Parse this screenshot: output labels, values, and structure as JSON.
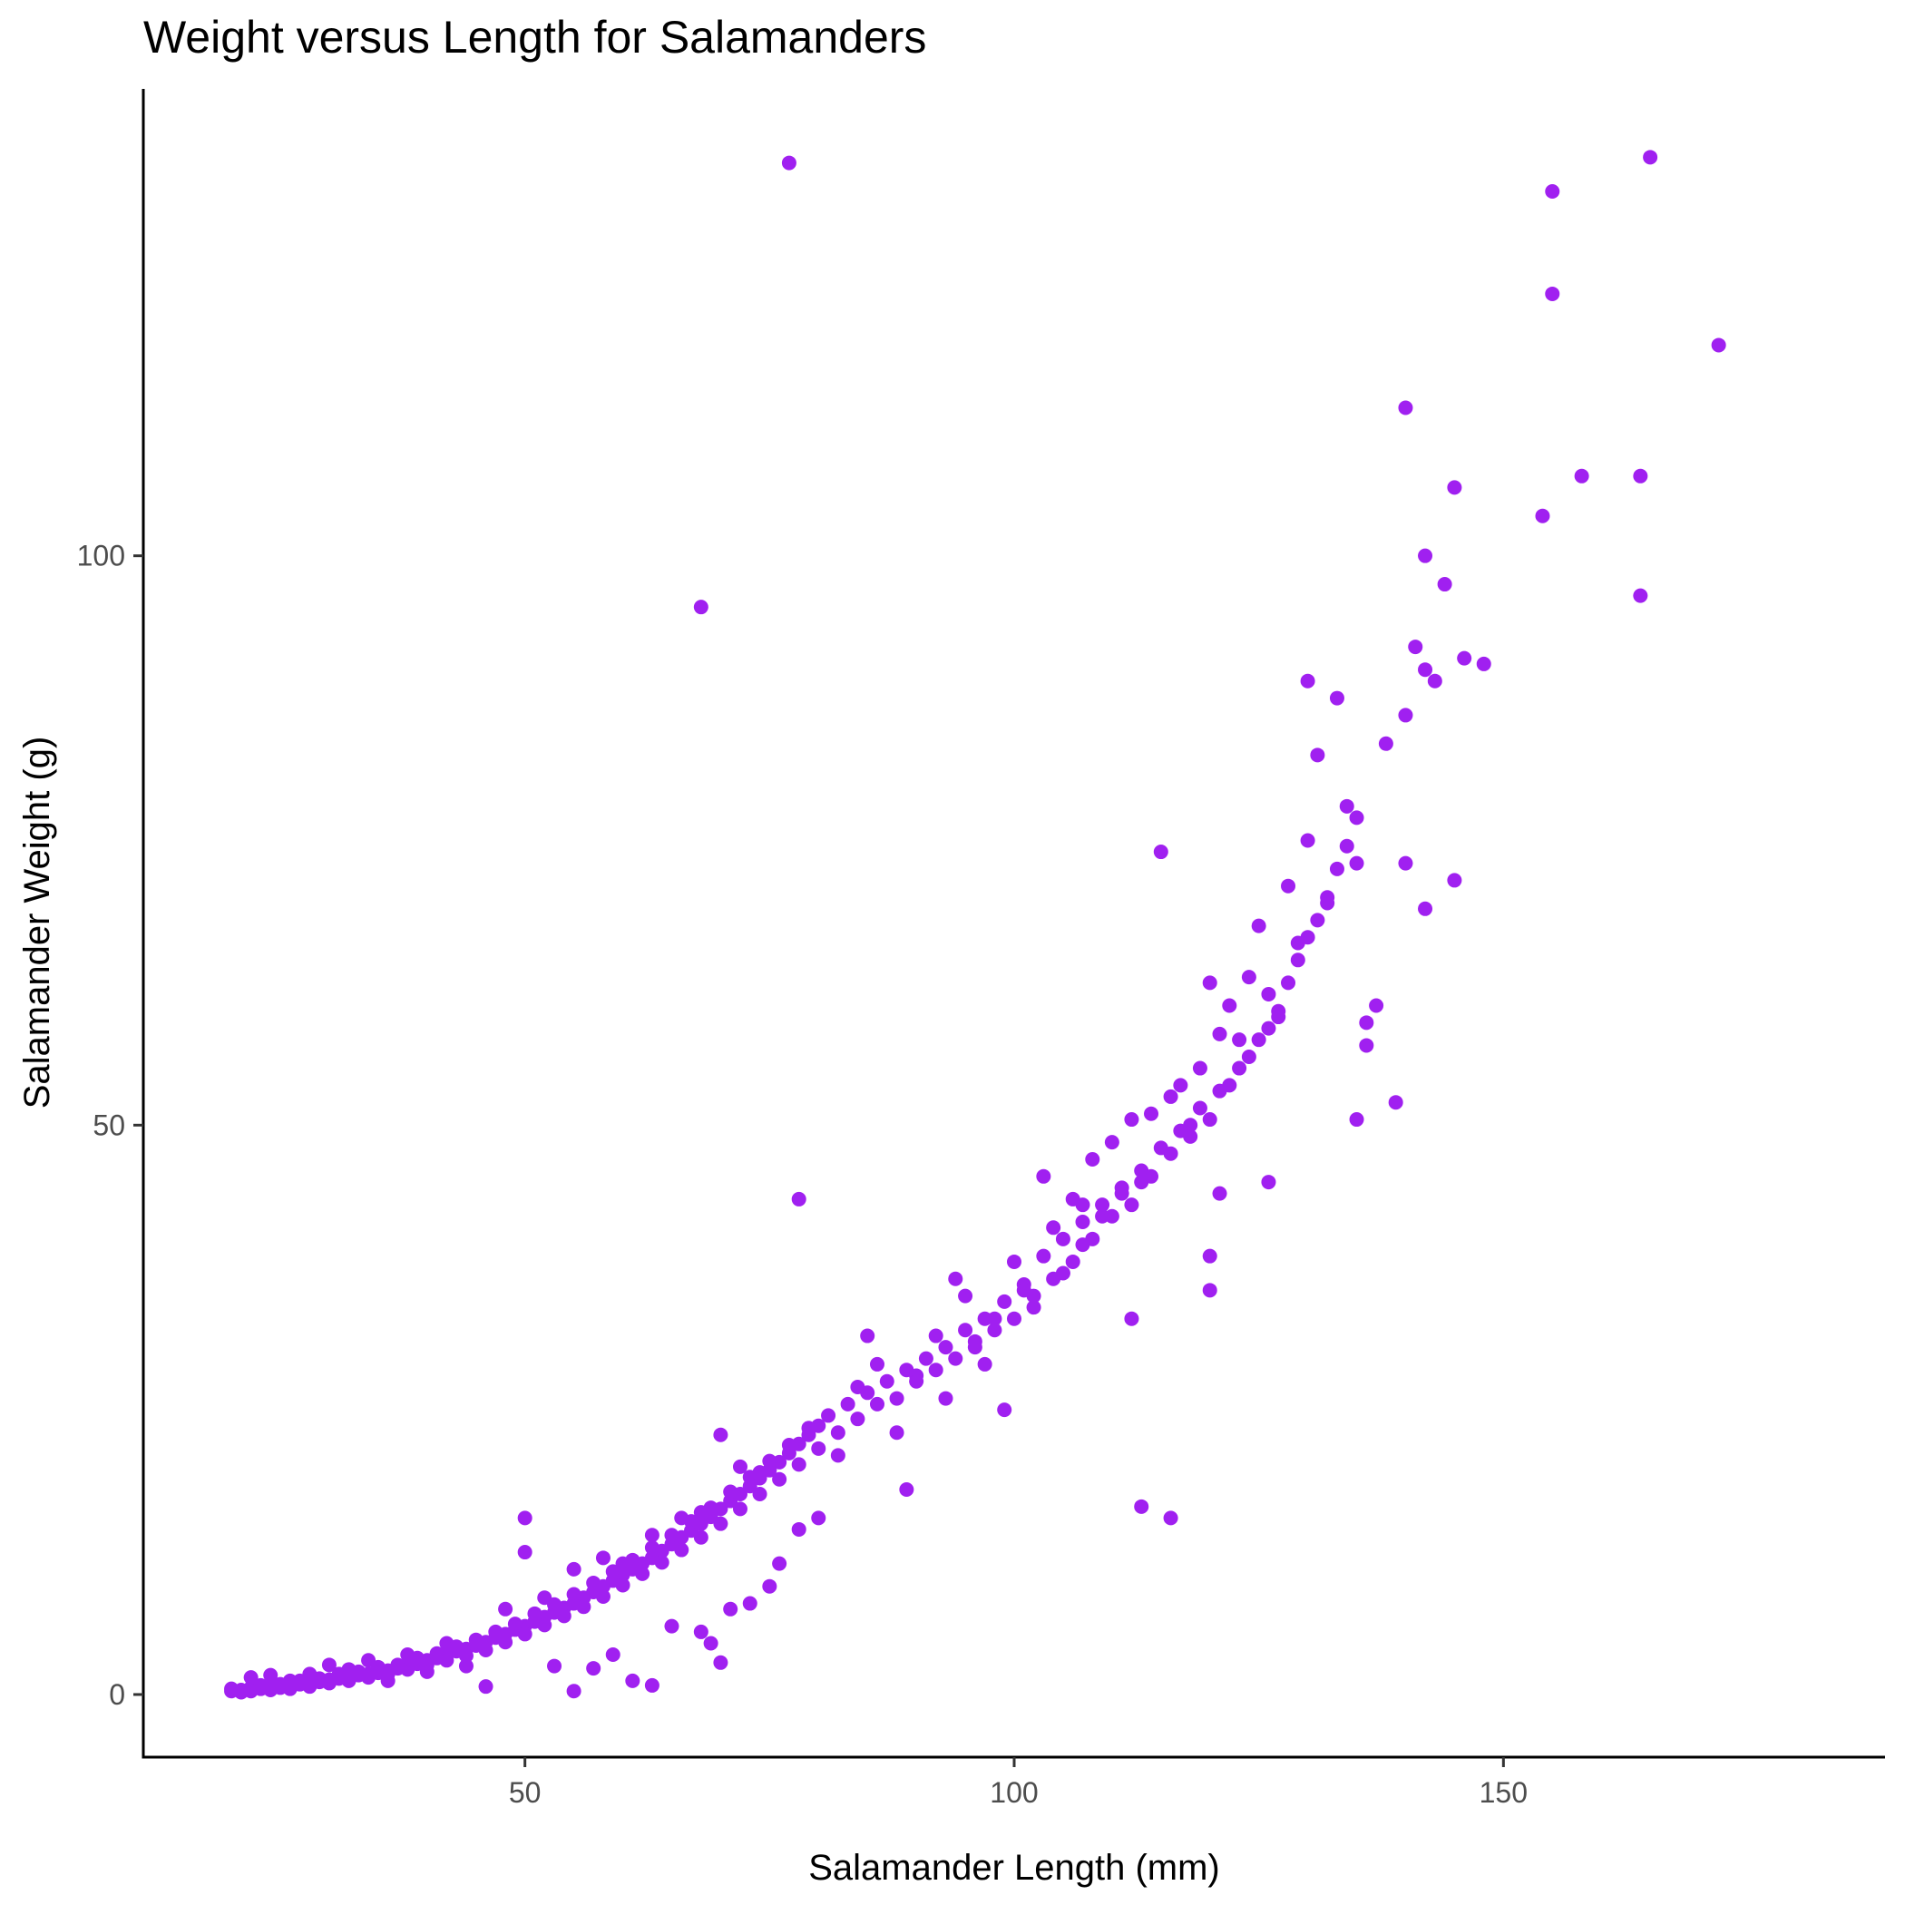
{
  "chart_data": {
    "type": "scatter",
    "title": "Weight versus Length for Salamanders",
    "xlabel": "Salamander Length (mm)",
    "ylabel": "Salamander Weight (g)",
    "xlim": [
      11,
      189
    ],
    "ylim": [
      -5.5,
      141
    ],
    "x_ticks": [
      50,
      100,
      150
    ],
    "y_ticks": [
      0,
      50,
      100
    ],
    "x_tick_labels": [
      "50",
      "100",
      "150"
    ],
    "y_tick_labels": [
      "0",
      "50",
      "100"
    ],
    "grid": false,
    "legend": "none",
    "point_color": "#A020F0",
    "series": [
      {
        "points": [
          [
            20,
            0.5
          ],
          [
            21,
            0.4
          ],
          [
            22,
            0.6
          ],
          [
            23,
            0.5
          ],
          [
            24,
            0.7
          ],
          [
            25,
            0.6
          ],
          [
            26,
            0.8
          ],
          [
            27,
            0.9
          ],
          [
            28,
            1.0
          ],
          [
            29,
            1.1
          ],
          [
            30,
            1.3
          ],
          [
            31,
            1.4
          ],
          [
            32,
            1.5
          ],
          [
            33,
            1.7
          ],
          [
            34,
            1.8
          ],
          [
            35,
            1.9
          ],
          [
            36,
            2.1
          ],
          [
            37,
            2.3
          ],
          [
            38,
            2.5
          ],
          [
            39,
            2.7
          ],
          [
            40,
            3.0
          ],
          [
            41,
            3.2
          ],
          [
            42,
            3.5
          ],
          [
            43,
            3.8
          ],
          [
            44,
            4.0
          ],
          [
            45,
            4.3
          ],
          [
            46,
            4.6
          ],
          [
            47,
            5.0
          ],
          [
            48,
            5.3
          ],
          [
            49,
            5.7
          ],
          [
            50,
            6.0
          ],
          [
            51,
            6.4
          ],
          [
            52,
            6.8
          ],
          [
            53,
            7.2
          ],
          [
            54,
            7.6
          ],
          [
            55,
            8.0
          ],
          [
            56,
            8.5
          ],
          [
            57,
            9.0
          ],
          [
            58,
            9.5
          ],
          [
            59,
            10.0
          ],
          [
            60,
            10.5
          ],
          [
            61,
            11.0
          ],
          [
            62,
            11.5
          ],
          [
            63,
            12.0
          ],
          [
            64,
            12.6
          ],
          [
            65,
            13.2
          ],
          [
            66,
            13.8
          ],
          [
            67,
            14.4
          ],
          [
            68,
            15.0
          ],
          [
            69,
            15.6
          ],
          [
            70,
            16.3
          ],
          [
            71,
            17.0
          ],
          [
            72,
            17.6
          ],
          [
            73,
            18.3
          ],
          [
            74,
            19.0
          ],
          [
            75,
            19.7
          ],
          [
            76,
            20.4
          ],
          [
            77,
            21.2
          ],
          [
            78,
            22.0
          ],
          [
            79,
            22.8
          ],
          [
            80,
            23.6
          ],
          [
            22,
            1.5
          ],
          [
            24,
            1.7
          ],
          [
            26,
            1.2
          ],
          [
            28,
            1.8
          ],
          [
            30,
            2.6
          ],
          [
            32,
            2.2
          ],
          [
            34,
            3.0
          ],
          [
            36,
            1.2
          ],
          [
            38,
            3.5
          ],
          [
            40,
            2.0
          ],
          [
            42,
            4.5
          ],
          [
            44,
            2.5
          ],
          [
            46,
            0.7
          ],
          [
            48,
            7.5
          ],
          [
            50,
            12.5
          ],
          [
            50,
            15.5
          ],
          [
            52,
            8.5
          ],
          [
            53,
            2.5
          ],
          [
            55,
            0.3
          ],
          [
            55,
            11.0
          ],
          [
            57,
            2.3
          ],
          [
            58,
            12.0
          ],
          [
            59,
            3.5
          ],
          [
            60,
            11.5
          ],
          [
            61,
            1.2
          ],
          [
            63,
            0.8
          ],
          [
            63,
            14.0
          ],
          [
            65,
            6.0
          ],
          [
            66,
            15.5
          ],
          [
            68,
            16.0
          ],
          [
            68,
            5.5
          ],
          [
            69,
            4.5
          ],
          [
            70,
            2.8
          ],
          [
            70,
            22.8
          ],
          [
            71,
            7.5
          ],
          [
            72,
            20.0
          ],
          [
            73,
            8.0
          ],
          [
            74,
            19.5
          ],
          [
            75,
            9.5
          ],
          [
            76,
            11.5
          ],
          [
            78,
            14.5
          ],
          [
            80,
            15.5
          ],
          [
            82,
            21.0
          ],
          [
            84,
            27.0
          ],
          [
            85,
            31.5
          ],
          [
            86,
            29.0
          ],
          [
            88,
            23.0
          ],
          [
            89,
            18.0
          ],
          [
            90,
            28.0
          ],
          [
            92,
            31.5
          ],
          [
            93,
            26.0
          ],
          [
            94,
            36.5
          ],
          [
            95,
            35.0
          ],
          [
            96,
            31.0
          ],
          [
            97,
            29.0
          ],
          [
            98,
            33.0
          ],
          [
            99,
            25.0
          ],
          [
            100,
            38.0
          ],
          [
            101,
            36.0
          ],
          [
            102,
            34.0
          ],
          [
            103,
            45.5
          ],
          [
            104,
            41.0
          ],
          [
            105,
            37.0
          ],
          [
            106,
            43.5
          ],
          [
            107,
            39.5
          ],
          [
            108,
            47.0
          ],
          [
            109,
            42.0
          ],
          [
            110,
            48.5
          ],
          [
            111,
            44.0
          ],
          [
            112,
            50.5
          ],
          [
            113,
            45.0
          ],
          [
            114,
            51.0
          ],
          [
            115,
            74.0
          ],
          [
            116,
            52.5
          ],
          [
            117,
            53.5
          ],
          [
            118,
            50.0
          ],
          [
            119,
            55.0
          ],
          [
            120,
            62.5
          ],
          [
            121,
            58.0
          ],
          [
            122,
            60.5
          ],
          [
            123,
            57.5
          ],
          [
            124,
            63.0
          ],
          [
            125,
            67.5
          ],
          [
            126,
            61.5
          ],
          [
            127,
            59.5
          ],
          [
            128,
            71.0
          ],
          [
            129,
            66.0
          ],
          [
            130,
            75.0
          ],
          [
            130,
            89.0
          ],
          [
            131,
            82.5
          ],
          [
            132,
            69.5
          ],
          [
            133,
            87.5
          ],
          [
            134,
            78.0
          ],
          [
            135,
            73.0
          ],
          [
            136,
            57.0
          ],
          [
            137,
            60.5
          ],
          [
            138,
            83.5
          ],
          [
            139,
            52.0
          ],
          [
            140,
            86.0
          ],
          [
            141,
            92.0
          ],
          [
            142,
            90.0
          ],
          [
            142,
            100.0
          ],
          [
            143,
            89.0
          ],
          [
            144,
            97.5
          ],
          [
            145,
            106.0
          ],
          [
            146,
            91.0
          ],
          [
            148,
            90.5
          ],
          [
            145,
            71.5
          ],
          [
            142,
            69.0
          ],
          [
            140,
            73.0
          ],
          [
            140,
            113.0
          ],
          [
            154,
            103.5
          ],
          [
            155,
            123.0
          ],
          [
            155,
            132.0
          ],
          [
            158,
            107.0
          ],
          [
            164,
            96.5
          ],
          [
            164,
            107.0
          ],
          [
            165,
            135.0
          ],
          [
            172,
            118.5
          ],
          [
            77,
            134.5
          ],
          [
            68,
            95.5
          ],
          [
            78,
            43.5
          ],
          [
            113,
            16.5
          ],
          [
            116,
            15.5
          ],
          [
            120,
            35.5
          ],
          [
            120,
            38.5
          ],
          [
            121,
            44.0
          ],
          [
            126,
            45.0
          ],
          [
            135,
            50.5
          ],
          [
            136,
            59.0
          ],
          [
            112,
            33.0
          ],
          [
            107,
            43.0
          ],
          [
            20,
            0.3
          ],
          [
            21,
            0.2
          ],
          [
            22,
            0.3
          ],
          [
            23,
            0.8
          ],
          [
            24,
            0.4
          ],
          [
            25,
            0.9
          ],
          [
            26,
            0.5
          ],
          [
            27,
            1.2
          ],
          [
            28,
            0.7
          ],
          [
            29,
            1.4
          ],
          [
            30,
            1.0
          ],
          [
            31,
            1.8
          ],
          [
            32,
            1.2
          ],
          [
            33,
            2.0
          ],
          [
            34,
            1.5
          ],
          [
            35,
            2.4
          ],
          [
            36,
            1.8
          ],
          [
            37,
            2.6
          ],
          [
            38,
            2.2
          ],
          [
            39,
            3.2
          ],
          [
            40,
            2.6
          ],
          [
            41,
            3.6
          ],
          [
            42,
            3.0
          ],
          [
            43,
            4.2
          ],
          [
            44,
            3.4
          ],
          [
            45,
            4.8
          ],
          [
            46,
            3.9
          ],
          [
            47,
            5.5
          ],
          [
            48,
            4.6
          ],
          [
            49,
            6.2
          ],
          [
            50,
            5.3
          ],
          [
            51,
            7.1
          ],
          [
            52,
            6.1
          ],
          [
            53,
            7.9
          ],
          [
            54,
            6.9
          ],
          [
            55,
            8.8
          ],
          [
            56,
            7.7
          ],
          [
            57,
            9.8
          ],
          [
            58,
            8.6
          ],
          [
            59,
            10.8
          ],
          [
            60,
            9.6
          ],
          [
            61,
            11.8
          ],
          [
            62,
            10.6
          ],
          [
            63,
            12.9
          ],
          [
            64,
            11.6
          ],
          [
            65,
            14.0
          ],
          [
            66,
            12.7
          ],
          [
            67,
            15.2
          ],
          [
            68,
            13.8
          ],
          [
            69,
            16.4
          ],
          [
            70,
            15.0
          ],
          [
            71,
            17.8
          ],
          [
            72,
            16.3
          ],
          [
            73,
            19.1
          ],
          [
            74,
            17.6
          ],
          [
            75,
            20.5
          ],
          [
            76,
            18.9
          ],
          [
            77,
            21.9
          ],
          [
            78,
            20.2
          ],
          [
            79,
            23.4
          ],
          [
            80,
            21.6
          ],
          [
            81,
            24.5
          ],
          [
            82,
            23.0
          ],
          [
            83,
            25.5
          ],
          [
            84,
            24.2
          ],
          [
            85,
            26.5
          ],
          [
            86,
            25.5
          ],
          [
            87,
            27.5
          ],
          [
            88,
            26.0
          ],
          [
            89,
            28.5
          ],
          [
            90,
            27.5
          ],
          [
            91,
            29.5
          ],
          [
            92,
            28.5
          ],
          [
            93,
            30.5
          ],
          [
            94,
            29.5
          ],
          [
            95,
            32.0
          ],
          [
            96,
            30.5
          ],
          [
            97,
            33.0
          ],
          [
            98,
            32.0
          ],
          [
            99,
            34.5
          ],
          [
            100,
            33.0
          ],
          [
            101,
            35.5
          ],
          [
            102,
            35.0
          ],
          [
            103,
            38.5
          ],
          [
            104,
            36.5
          ],
          [
            105,
            40.0
          ],
          [
            106,
            38.0
          ],
          [
            107,
            41.5
          ],
          [
            108,
            40.0
          ],
          [
            109,
            43.0
          ],
          [
            110,
            42.0
          ],
          [
            111,
            44.5
          ],
          [
            112,
            43.0
          ],
          [
            113,
            46.0
          ],
          [
            114,
            45.5
          ],
          [
            115,
            48.0
          ],
          [
            116,
            47.5
          ],
          [
            117,
            49.5
          ],
          [
            118,
            49.0
          ],
          [
            119,
            51.5
          ],
          [
            120,
            50.5
          ],
          [
            121,
            53.0
          ],
          [
            122,
            53.5
          ],
          [
            123,
            55.0
          ],
          [
            124,
            56.0
          ],
          [
            125,
            57.5
          ],
          [
            126,
            58.5
          ],
          [
            127,
            60.0
          ],
          [
            128,
            62.5
          ],
          [
            129,
            64.5
          ],
          [
            130,
            66.5
          ],
          [
            131,
            68.0
          ],
          [
            132,
            70.0
          ],
          [
            133,
            72.5
          ],
          [
            134,
            74.5
          ],
          [
            135,
            77.0
          ]
        ]
      }
    ]
  }
}
